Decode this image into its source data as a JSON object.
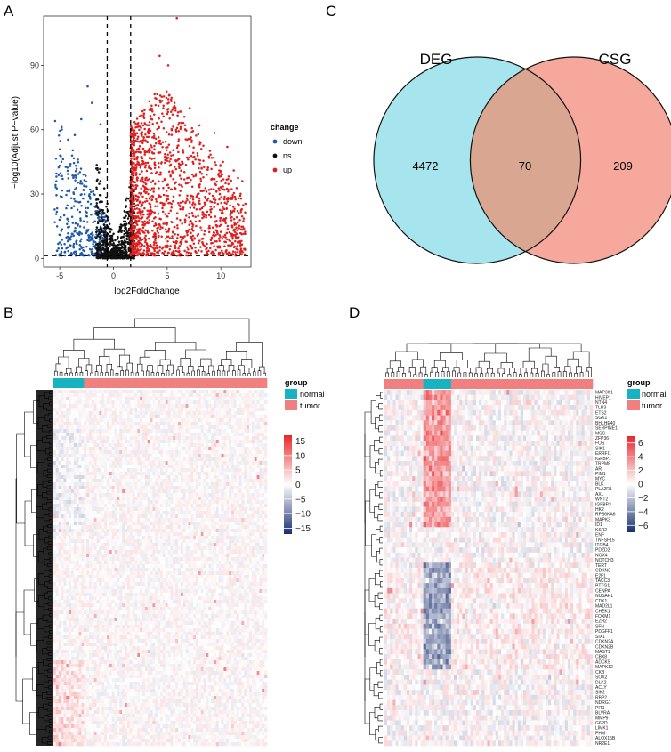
{
  "panels": [
    "A",
    "B",
    "C",
    "D"
  ],
  "colors": {
    "down": "#1f5aa8",
    "ns": "#111111",
    "up": "#e0201e",
    "normal": "#17b3c0",
    "tumor": "#f08080",
    "venn_left": "#a6e5ee",
    "venn_right": "#f6a89d",
    "venn_overlap": "#d9a692",
    "heat_high": "#e8262b",
    "heat_mid": "#ffffff",
    "heat_low": "#1a2e6e"
  },
  "chart_data": [
    {
      "panel": "A",
      "type": "scatter",
      "title": "",
      "xlabel": "log2FoldChange",
      "ylabel": "−log10(Adjust P−value)",
      "xlim": [
        -6.5,
        12.8
      ],
      "ylim": [
        -4,
        113
      ],
      "xticks": [
        -5,
        0,
        5,
        10
      ],
      "yticks": [
        0,
        30,
        60,
        90
      ],
      "vlines": [
        -0.58,
        1.6
      ],
      "hline": 1.3,
      "legend": {
        "title": "change",
        "position": "right",
        "entries": [
          "down",
          "ns",
          "up"
        ]
      },
      "series": [
        {
          "name": "down",
          "x_range": [
            -5.5,
            -0.6
          ],
          "y_range": [
            1.3,
            80
          ],
          "n_points": 380,
          "labeled_points": [
            {
              "x": -4.8,
              "y": 60.1
            },
            {
              "x": -2.4,
              "y": 80.2
            },
            {
              "x": -4.9,
              "y": 47.7
            },
            {
              "x": -1.2,
              "y": 62.5
            },
            {
              "x": -3.6,
              "y": 57.5
            },
            {
              "x": -5.3,
              "y": 29.5
            },
            {
              "x": -2.0,
              "y": 72.5
            },
            {
              "x": -4.0,
              "y": 44.0
            },
            {
              "x": -3.0,
              "y": 64.9
            }
          ]
        },
        {
          "name": "ns",
          "x_range": [
            -1.6,
            2.0
          ],
          "y_range": [
            0,
            50
          ],
          "n_points": 700
        },
        {
          "name": "up",
          "x_range": [
            1.6,
            12.3
          ],
          "y_range": [
            1.3,
            112
          ],
          "n_points": 1500,
          "labeled_points": [
            {
              "x": 5.9,
              "y": 112.1
            },
            {
              "x": 4.3,
              "y": 94.4
            },
            {
              "x": 5.1,
              "y": 90.0
            },
            {
              "x": 10.2,
              "y": 45.0
            },
            {
              "x": 11.2,
              "y": 41.0
            },
            {
              "x": 12.0,
              "y": 36.0
            },
            {
              "x": 9.4,
              "y": 58.5
            },
            {
              "x": 8.0,
              "y": 62.0
            },
            {
              "x": 7.1,
              "y": 70.0
            },
            {
              "x": 11.6,
              "y": 37.5
            },
            {
              "x": 9.9,
              "y": 30.0
            },
            {
              "x": 10.6,
              "y": 52.0
            }
          ]
        }
      ]
    },
    {
      "panel": "C",
      "type": "venn",
      "sets": [
        {
          "name": "DEG",
          "only": 4472
        },
        {
          "name": "CSG",
          "only": 209
        }
      ],
      "intersection": 70
    },
    {
      "panel": "B",
      "type": "heatmap",
      "legend": {
        "title": "group",
        "entries": [
          "normal",
          "tumor"
        ],
        "position": "right"
      },
      "colorbar": {
        "ticks": [
          15,
          10,
          5,
          0,
          -5,
          -10,
          -15
        ],
        "range": [
          -17,
          17
        ]
      },
      "n_samples": 84,
      "n_normal_samples": 12,
      "n_genes": 400,
      "dendrogram_col": true,
      "dendrogram_row": true
    },
    {
      "panel": "D",
      "type": "heatmap",
      "legend": {
        "title": "group",
        "entries": [
          "normal",
          "tumor"
        ],
        "position": "right"
      },
      "colorbar": {
        "ticks": [
          6,
          4,
          2,
          0,
          -2,
          -4,
          -6
        ],
        "range": [
          -7,
          7
        ]
      },
      "n_samples": 75,
      "normal_sample_range": [
        14,
        24
      ],
      "genes": [
        "MAP3K1",
        "HIVEP1",
        "NTN4",
        "TLR3",
        "ETS2",
        "SGK1",
        "BHLHE40",
        "SERPINE1",
        "MSC",
        "ZFP36",
        "FOS",
        "SIK1",
        "ERRFI1",
        "IGFBP1",
        "TRPM8",
        "AR",
        "PIM1",
        "MYC",
        "BLK",
        "PLA2R1",
        "AXL",
        "WNT2",
        "IGFBP3",
        "HK2",
        "RPS6KA6",
        "MAPK3",
        "ID1",
        "KSR2",
        "ENF",
        "TNFSF15",
        "ITGB4",
        "PDZD2",
        "NOX4",
        "NOTCH3",
        "TERT",
        "CDKN3",
        "E2F1",
        "TACC3",
        "PTTG1",
        "CENPA",
        "NUSAP1",
        "CDK1",
        "MAD2L1",
        "CHEK1",
        "FOXM1",
        "EZH2",
        "SFN",
        "PDGFF1",
        "SIX1",
        "CDKN2A",
        "CDKN2B",
        "MAST1",
        "CBX8",
        "ADCK5",
        "MAPK12",
        "CKB",
        "SOX2",
        "DLK2",
        "ACLY",
        "SIK2",
        "RBP2",
        "NDRG1",
        "PIT1",
        "BLVRA",
        "MMP9",
        "G6PD",
        "LIMK1",
        "PHM",
        "ALOX15B",
        "NR2E1"
      ]
    }
  ]
}
